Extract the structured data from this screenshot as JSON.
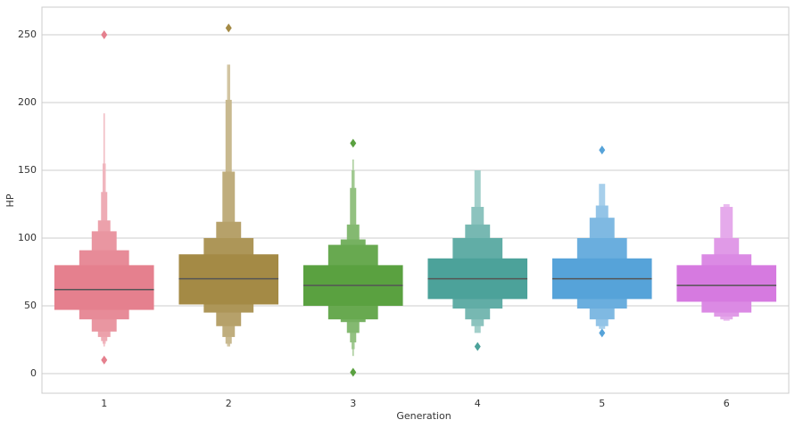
{
  "chart_data": {
    "type": "boxen",
    "xlabel": "Generation",
    "ylabel": "HP",
    "categories": [
      "1",
      "2",
      "3",
      "4",
      "5",
      "6"
    ],
    "ylim": [
      -14.5,
      270.4
    ],
    "yticks": [
      0,
      50,
      100,
      150,
      200,
      250
    ],
    "grid": true,
    "boxes": [
      {
        "color": "#e5808e",
        "median": 62,
        "levels": [
          [
            47,
            80
          ],
          [
            40,
            91
          ],
          [
            31,
            105
          ],
          [
            27,
            113
          ],
          [
            24,
            134
          ],
          [
            22,
            155
          ],
          [
            20,
            192
          ]
        ],
        "outliers": [
          250,
          10
        ]
      },
      {
        "color": "#a48a45",
        "median": 70,
        "levels": [
          [
            51,
            88
          ],
          [
            45,
            100
          ],
          [
            35,
            112
          ],
          [
            27,
            149
          ],
          [
            22,
            202
          ],
          [
            20,
            228
          ]
        ],
        "outliers": [
          255
        ]
      },
      {
        "color": "#5aa140",
        "median": 65,
        "levels": [
          [
            50,
            80
          ],
          [
            40,
            95
          ],
          [
            38,
            99
          ],
          [
            30,
            110
          ],
          [
            23,
            137
          ],
          [
            18,
            150
          ],
          [
            13,
            158
          ]
        ],
        "outliers": [
          170,
          1
        ]
      },
      {
        "color": "#4ca29a",
        "median": 70,
        "levels": [
          [
            55,
            85
          ],
          [
            48,
            100
          ],
          [
            40,
            110
          ],
          [
            35,
            123
          ],
          [
            30,
            150
          ]
        ],
        "outliers": [
          20
        ]
      },
      {
        "color": "#56a3d9",
        "median": 70,
        "levels": [
          [
            55,
            85
          ],
          [
            48,
            100
          ],
          [
            40,
            115
          ],
          [
            35,
            124
          ],
          [
            33,
            140
          ]
        ],
        "outliers": [
          165,
          30
        ]
      },
      {
        "color": "#d67ae0",
        "median": 65,
        "levels": [
          [
            53,
            80
          ],
          [
            45,
            88
          ],
          [
            42,
            100
          ],
          [
            40,
            123
          ],
          [
            39,
            125
          ]
        ],
        "outliers": []
      }
    ]
  }
}
